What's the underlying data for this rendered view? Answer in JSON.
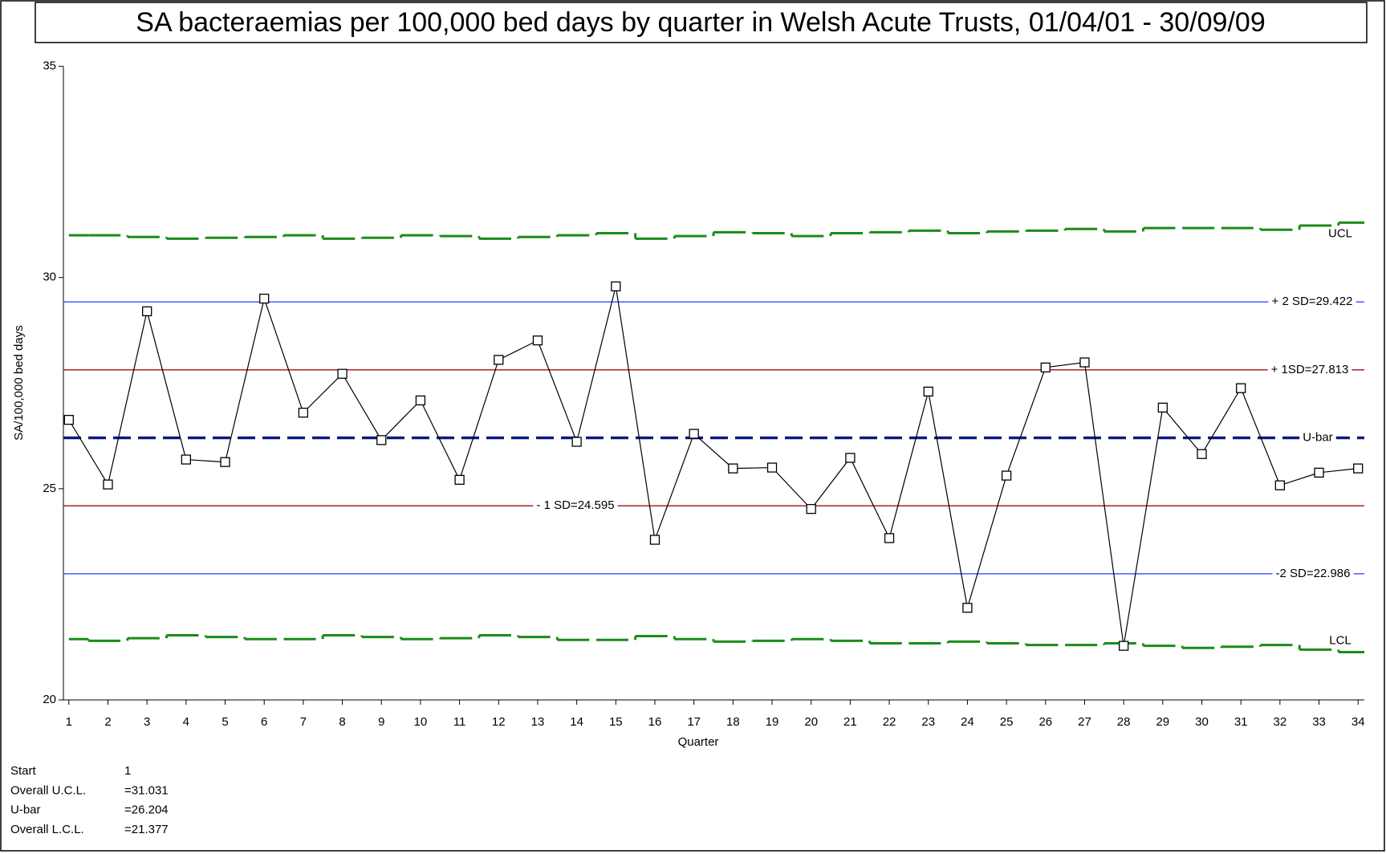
{
  "chart_data": {
    "type": "line",
    "title": "SA bacteraemias per 100,000 bed days by quarter in Welsh Acute Trusts, 01/04/01 - 30/09/09",
    "x_label": "Quarter",
    "y_label": "SA/100,000 bed days",
    "x": [
      1,
      2,
      3,
      4,
      5,
      6,
      7,
      8,
      9,
      10,
      11,
      12,
      13,
      14,
      15,
      16,
      17,
      18,
      19,
      20,
      21,
      22,
      23,
      24,
      25,
      26,
      27,
      28,
      29,
      30,
      31,
      32,
      33,
      34
    ],
    "xlim": [
      0.86,
      34.16
    ],
    "xticks": [
      1,
      2,
      3,
      4,
      5,
      6,
      7,
      8,
      9,
      10,
      11,
      12,
      13,
      14,
      15,
      16,
      17,
      18,
      19,
      20,
      21,
      22,
      23,
      24,
      25,
      26,
      27,
      28,
      29,
      30,
      31,
      32,
      33,
      34
    ],
    "ylim": [
      20,
      35
    ],
    "yticks": [
      20,
      25,
      30,
      35
    ],
    "series": [
      {
        "name": "SA/100,000 bed days",
        "color": "#000000",
        "values": [
          26.63,
          25.1,
          29.2,
          25.69,
          25.63,
          29.5,
          26.8,
          27.72,
          26.15,
          27.09,
          25.21,
          28.05,
          28.51,
          26.11,
          29.79,
          23.79,
          26.3,
          25.48,
          25.5,
          24.52,
          25.73,
          23.83,
          27.3,
          22.18,
          25.31,
          27.87,
          27.99,
          21.28,
          26.92,
          25.82,
          27.38,
          25.08,
          25.38,
          25.48
        ]
      },
      {
        "name": "UCL",
        "color": "#1a8c1a",
        "values": [
          31.0,
          31.0,
          30.96,
          30.92,
          30.94,
          30.96,
          31.0,
          30.92,
          30.94,
          31.0,
          30.98,
          30.92,
          30.96,
          31.0,
          31.05,
          30.92,
          30.98,
          31.07,
          31.05,
          30.98,
          31.05,
          31.07,
          31.11,
          31.05,
          31.09,
          31.11,
          31.15,
          31.09,
          31.17,
          31.17,
          31.17,
          31.13,
          31.23,
          31.3
        ]
      },
      {
        "name": "LCL",
        "color": "#1a8c1a",
        "values": [
          21.44,
          21.4,
          21.46,
          21.53,
          21.49,
          21.44,
          21.44,
          21.53,
          21.49,
          21.44,
          21.46,
          21.53,
          21.49,
          21.42,
          21.42,
          21.51,
          21.44,
          21.38,
          21.4,
          21.44,
          21.4,
          21.34,
          21.34,
          21.38,
          21.34,
          21.3,
          21.3,
          21.34,
          21.28,
          21.23,
          21.26,
          21.3,
          21.19,
          21.13
        ]
      }
    ],
    "reference_lines": [
      {
        "label": "+ 2 SD=29.422",
        "value": 29.422,
        "color": "#1f3dff"
      },
      {
        "label": "+ 1SD=27.813",
        "value": 27.813,
        "color": "#a01010"
      },
      {
        "label": "U-bar",
        "value": 26.204,
        "color": "#0a1a80"
      },
      {
        "label": "- 1 SD=24.595",
        "value": 24.595,
        "color": "#a01010"
      },
      {
        "label": "-2 SD=22.986",
        "value": 22.986,
        "color": "#1f3dff"
      }
    ],
    "stats": [
      {
        "label": "Start",
        "value": "1",
        "color": "#000000"
      },
      {
        "label": "Overall U.C.L.",
        "value": "=31.031",
        "color": "#1a8c1a"
      },
      {
        "label": "U-bar",
        "value": "=26.204",
        "color": "#0a1a80"
      },
      {
        "label": "Overall L.C.L.",
        "value": "=21.377",
        "color": "#1a8c1a"
      }
    ]
  }
}
